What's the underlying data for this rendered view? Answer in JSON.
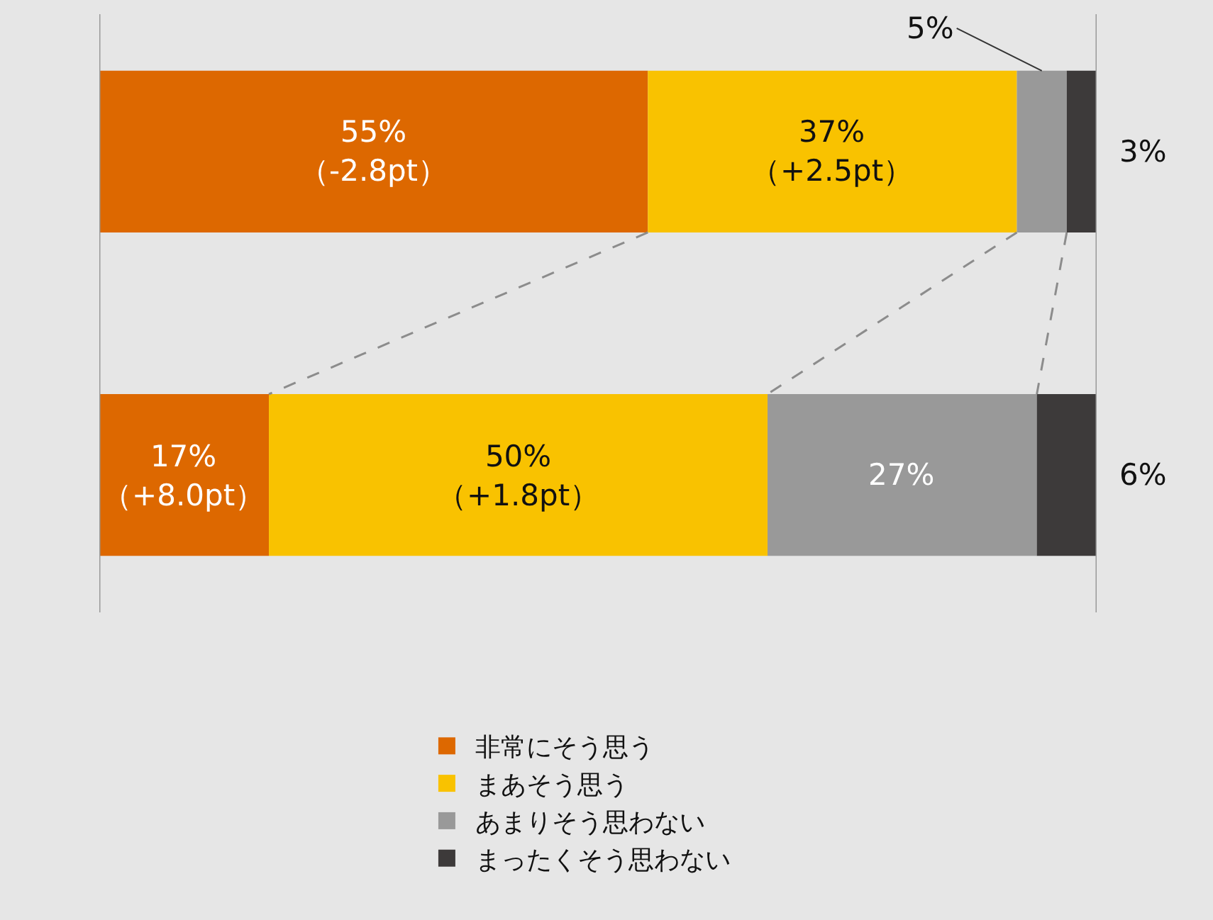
{
  "chart_data": {
    "type": "bar",
    "orientation": "horizontal",
    "stacked": true,
    "categories": [
      null,
      null
    ],
    "series": [
      {
        "name": "非常にそう思う",
        "color": "#dd6800",
        "values": [
          55,
          17
        ],
        "value_labels": [
          "55%\n（-2.8pt）",
          "17%\n（+8.0pt）"
        ]
      },
      {
        "name": "まあそう思う",
        "color": "#f9c200",
        "values": [
          37,
          50
        ],
        "value_labels": [
          "37%\n（+2.5pt）",
          "50%\n（+1.8pt）"
        ]
      },
      {
        "name": "あまりそう思わない",
        "color": "#999999",
        "values": [
          5,
          27
        ],
        "value_labels": [
          "5%",
          "27%"
        ]
      },
      {
        "name": "まったくそう思わない",
        "color": "#3d3a3a",
        "values": [
          3,
          6
        ],
        "value_labels": [
          "3%",
          "6%"
        ]
      }
    ],
    "xlim": [
      0,
      100
    ],
    "tick_labels": false,
    "grid": false,
    "legend": "bottom",
    "ref_lines": [
      {
        "axis": "x",
        "value": 0,
        "color": "#999999"
      },
      {
        "axis": "x",
        "value": 100,
        "color": "#999999"
      }
    ]
  }
}
